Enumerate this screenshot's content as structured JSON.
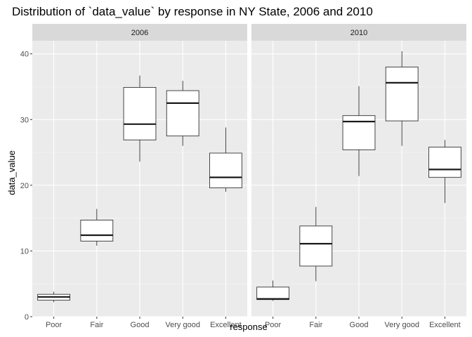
{
  "chart_data": {
    "type": "boxplot",
    "title": "Distribution of `data_value` by response in NY State, 2006 and 2010",
    "xlabel": "response",
    "ylabel": "data_value",
    "ylim": [
      0,
      42
    ],
    "yticks": [
      0,
      10,
      20,
      30,
      40
    ],
    "grid": true,
    "categories": [
      "Poor",
      "Fair",
      "Good",
      "Very good",
      "Excellent"
    ],
    "panels": [
      {
        "label": "2006",
        "boxes": [
          {
            "category": "Poor",
            "min": 2.2,
            "q1": 2.5,
            "median": 3.0,
            "q3": 3.4,
            "max": 3.8
          },
          {
            "category": "Fair",
            "min": 10.8,
            "q1": 11.5,
            "median": 12.4,
            "q3": 14.7,
            "max": 16.4
          },
          {
            "category": "Good",
            "min": 23.6,
            "q1": 26.9,
            "median": 29.3,
            "q3": 34.9,
            "max": 36.7
          },
          {
            "category": "Very good",
            "min": 26.0,
            "q1": 27.5,
            "median": 32.5,
            "q3": 34.4,
            "max": 35.9
          },
          {
            "category": "Excellent",
            "min": 19.0,
            "q1": 19.6,
            "median": 21.2,
            "q3": 24.9,
            "max": 28.8
          }
        ]
      },
      {
        "label": "2010",
        "boxes": [
          {
            "category": "Poor",
            "min": 2.4,
            "q1": 2.6,
            "median": 2.7,
            "q3": 4.5,
            "max": 5.5
          },
          {
            "category": "Fair",
            "min": 5.4,
            "q1": 7.7,
            "median": 11.1,
            "q3": 13.8,
            "max": 16.7
          },
          {
            "category": "Good",
            "min": 21.4,
            "q1": 25.4,
            "median": 29.7,
            "q3": 30.6,
            "max": 35.1
          },
          {
            "category": "Very good",
            "min": 26.0,
            "q1": 29.8,
            "median": 35.6,
            "q3": 38.0,
            "max": 40.4
          },
          {
            "category": "Excellent",
            "min": 17.3,
            "q1": 21.2,
            "median": 22.4,
            "q3": 25.8,
            "max": 26.9
          }
        ]
      }
    ],
    "colors": {
      "panel_bg": "#ebebeb",
      "grid_major": "#ffffff",
      "grid_minor": "#f5f5f5",
      "strip_bg": "#d9d9d9",
      "box_fill": "#ffffff",
      "box_line": "#333333",
      "median_line": "#1a1a1a"
    }
  }
}
